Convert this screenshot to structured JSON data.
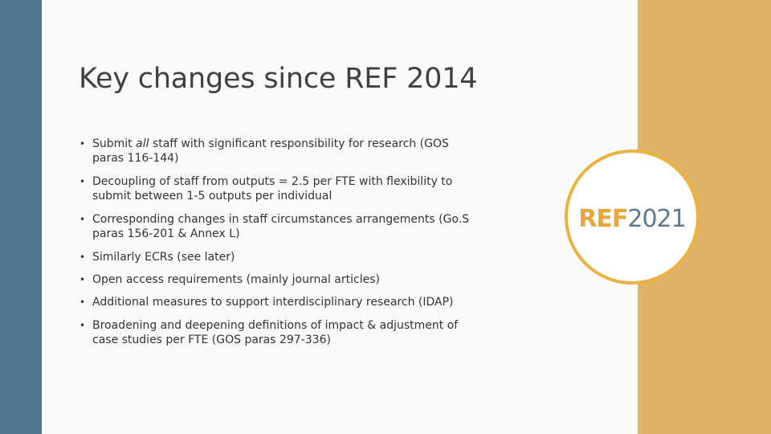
{
  "slide": {
    "title": "Key changes since REF 2014",
    "bullets": [
      {
        "pre": "Submit ",
        "em": "all",
        "post": " staff with significant responsibility for research (GOS paras 116-144)"
      },
      {
        "pre": "Decoupling of staff from outputs = 2.5 per FTE with flexibility to submit between 1-5 outputs per individual",
        "em": "",
        "post": ""
      },
      {
        "pre": "Corresponding changes in staff circumstances arrangements (Go.S paras 156-201 & Annex L)",
        "em": "",
        "post": ""
      },
      {
        "pre": "Similarly ECRs (see later)",
        "em": "",
        "post": ""
      },
      {
        "pre": "Open access requirements (mainly journal articles)",
        "em": "",
        "post": ""
      },
      {
        "pre": "Additional measures to support interdisciplinary research (IDAP)",
        "em": "",
        "post": ""
      },
      {
        "pre": "Broadening and deepening definitions of impact & adjustment of case studies per FTE  (GOS paras 297-336)",
        "em": "",
        "post": ""
      }
    ],
    "bullet_symbol": "•"
  },
  "logo": {
    "ref": "REF",
    "year": "2021"
  },
  "colors": {
    "left_bar": "#4f7590",
    "right_panel": "#e0b467",
    "logo_ring": "#e9b241",
    "logo_ref": "#e7a63c",
    "logo_year": "#5c7a8c"
  }
}
